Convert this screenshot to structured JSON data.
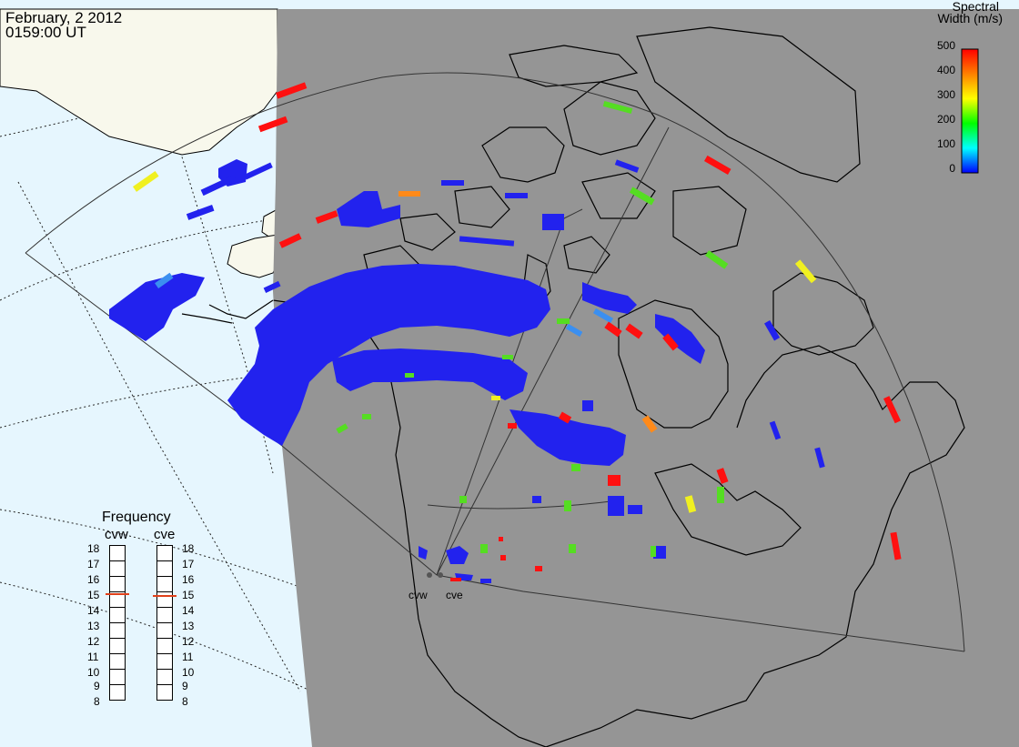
{
  "header": {
    "date": "February, 2 2012",
    "time": "0159:00 UT"
  },
  "colorbar": {
    "title_line1": "Spectral",
    "title_line2": "Width (m/s)",
    "ticks": [
      "500",
      "400",
      "300",
      "200",
      "100",
      "0"
    ],
    "colors": [
      "#ff0000",
      "#ff8000",
      "#ffff00",
      "#00ff00",
      "#00ffff",
      "#0000ff"
    ],
    "range": [
      0,
      500
    ]
  },
  "frequency": {
    "title": "Frequency",
    "radars": [
      {
        "code": "cvw",
        "selected_mhz": 15
      },
      {
        "code": "cve",
        "selected_mhz": 15
      }
    ],
    "ticks": [
      "18",
      "17",
      "16",
      "15",
      "14",
      "13",
      "12",
      "11",
      "10",
      "9",
      "8"
    ],
    "range": [
      8,
      18
    ]
  },
  "sites": [
    "cvw",
    "cve"
  ],
  "colors": {
    "ocean": "#e6f6fe",
    "land_day": "#f8f8ec",
    "night": "#959595",
    "backscatter": "#2222ee",
    "freq_marker": "#e0401a"
  }
}
